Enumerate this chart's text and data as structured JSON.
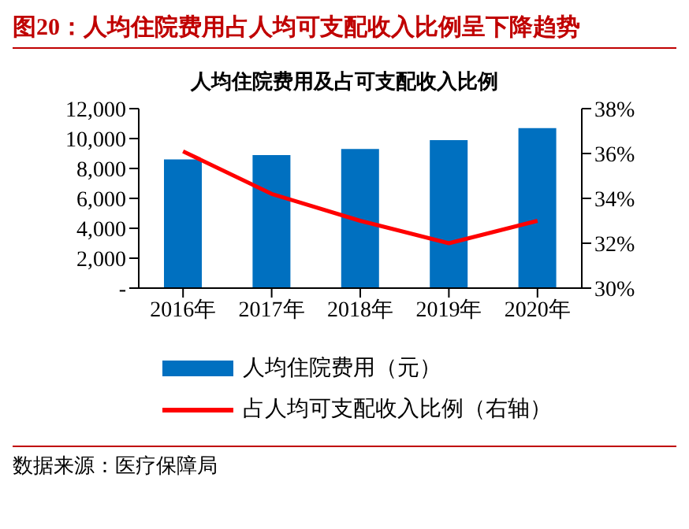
{
  "chart_data": {
    "type": "bar",
    "title": "图20：人均住院费用占人均可支配收入比例呈下降趋势",
    "subtitle": "人均住院费用及占可支配收入比例",
    "categories": [
      "2016年",
      "2017年",
      "2018年",
      "2019年",
      "2020年"
    ],
    "series": [
      {
        "name": "人均住院费用（元）",
        "color": "#0070c0",
        "values": [
          8600,
          8900,
          9300,
          9900,
          10700
        ]
      },
      {
        "name": "占人均可支配收入比例（右轴）",
        "type": "line",
        "color": "#ff0000",
        "axis": "y2",
        "values": [
          36.1,
          34.2,
          33.0,
          32.0,
          33.0
        ]
      }
    ],
    "ylim": [
      0,
      12000
    ],
    "yticks": [
      {
        "value": 0,
        "label": "-"
      },
      {
        "value": 2000,
        "label": "2,000"
      },
      {
        "value": 4000,
        "label": "4,000"
      },
      {
        "value": 6000,
        "label": "6,000"
      },
      {
        "value": 8000,
        "label": "8,000"
      },
      {
        "value": 10000,
        "label": "10,000"
      },
      {
        "value": 12000,
        "label": "12,000"
      }
    ],
    "y2lim": [
      30,
      38
    ],
    "y2ticks": [
      {
        "value": 30,
        "label": "30%"
      },
      {
        "value": 32,
        "label": "32%"
      },
      {
        "value": 34,
        "label": "34%"
      },
      {
        "value": 36,
        "label": "36%"
      },
      {
        "value": 38,
        "label": "38%"
      }
    ],
    "legend": "bottom",
    "grid": false,
    "marker": "none",
    "line_style": "solid",
    "annotations": [
      "数据来源：医疗保障局"
    ]
  }
}
